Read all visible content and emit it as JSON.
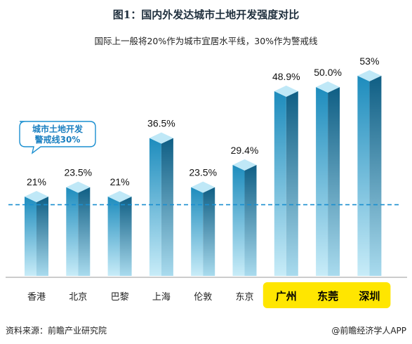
{
  "title": "图1：国内外发达城市土地开发强度对比",
  "subtitle": "国际上一般将20%作为城市宜居水平线，30%作为警戒线",
  "footer": {
    "source": "资料来源：前瞻产业研究院",
    "brand": "@前瞻经济学人APP"
  },
  "colors": {
    "bar_top": "#bfe8f7",
    "bar_front_light": "#bfe6f5",
    "bar_front_dark": "#1d8cbd",
    "bar_side_dark": "#0f5e84",
    "threshold_line": "#1a8fd0",
    "highlight": "#ffe600"
  },
  "chart_data": {
    "type": "bar",
    "title": "图1：国内外发达城市土地开发强度对比",
    "categories": [
      "香港",
      "北京",
      "巴黎",
      "上海",
      "伦敦",
      "东京",
      "广州",
      "东莞",
      "深圳"
    ],
    "values": [
      21,
      23.5,
      21,
      36.5,
      23.5,
      29.4,
      48.9,
      50.0,
      53
    ],
    "value_labels": [
      "21%",
      "23.5%",
      "21%",
      "36.5%",
      "23.5%",
      "29.4%",
      "48.9%",
      "50.0%",
      "53%"
    ],
    "highlighted_categories": [
      "广州",
      "东莞",
      "深圳"
    ],
    "threshold": {
      "value": 30,
      "label_line1": "城市土地开发",
      "label_line2": "警戒线30%"
    },
    "ylim": [
      0,
      60
    ],
    "grid": false,
    "legend": "none"
  }
}
